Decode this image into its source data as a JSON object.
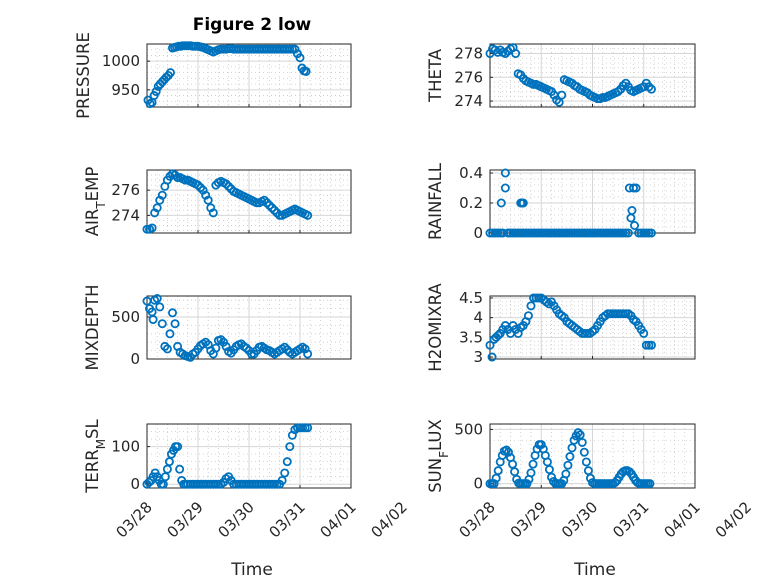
{
  "figure": {
    "title": "Figure 2 low",
    "xlabel": "Time"
  },
  "colors": {
    "marker": "#0072BD",
    "axes": "#262626",
    "grid": "#d6d6d6"
  },
  "chart_data": [
    {
      "type": "scatter",
      "id": "pressure",
      "ylabel": "PRESSURE",
      "ylim": [
        920,
        1030
      ],
      "yticks": [
        950,
        1000
      ],
      "ytick_labels": [
        "950",
        "1000"
      ],
      "xlim": [
        0,
        4
      ],
      "xtick_labels": [],
      "x": [
        0.02,
        0.06,
        0.1,
        0.14,
        0.18,
        0.22,
        0.26,
        0.3,
        0.34,
        0.38,
        0.42,
        0.46,
        0.5,
        0.54,
        0.58,
        0.62,
        0.66,
        0.7,
        0.74,
        0.78,
        0.82,
        0.86,
        0.9,
        0.95,
        1.0,
        1.05,
        1.1,
        1.15,
        1.2,
        1.25,
        1.3,
        1.35,
        1.4,
        1.45,
        1.5,
        1.55,
        1.6,
        1.65,
        1.7,
        1.75,
        1.8,
        1.85,
        1.9,
        1.95,
        2.0,
        2.05,
        2.1,
        2.15,
        2.2,
        2.25,
        2.3,
        2.35,
        2.4,
        2.45,
        2.5,
        2.55,
        2.6,
        2.65,
        2.7,
        2.75,
        2.8,
        2.85,
        2.9,
        2.95,
        3.0,
        3.04,
        3.08,
        3.12
      ],
      "y": [
        932,
        926,
        928,
        940,
        947,
        956,
        960,
        964,
        968,
        972,
        975,
        980,
        1023,
        1024,
        1025,
        1026,
        1026,
        1027,
        1027,
        1027,
        1027,
        1027,
        1026,
        1026,
        1026,
        1025,
        1024,
        1022,
        1020,
        1018,
        1016,
        1018,
        1020,
        1021,
        1021,
        1021,
        1022,
        1022,
        1021,
        1021,
        1021,
        1021,
        1021,
        1021,
        1021,
        1021,
        1021,
        1021,
        1021,
        1021,
        1021,
        1021,
        1021,
        1021,
        1021,
        1021,
        1021,
        1021,
        1021,
        1021,
        1021,
        1021,
        1021,
        1013,
        1006,
        988,
        983,
        982
      ]
    },
    {
      "type": "scatter",
      "id": "theta",
      "ylabel": "THETA",
      "ylim": [
        273.5,
        278.8
      ],
      "yticks": [
        274,
        276,
        278
      ],
      "ytick_labels": [
        "274",
        "276",
        "278"
      ],
      "xlim": [
        0,
        4
      ],
      "xtick_labels": [],
      "x": [
        0.0,
        0.05,
        0.1,
        0.15,
        0.2,
        0.25,
        0.3,
        0.35,
        0.4,
        0.45,
        0.5,
        0.55,
        0.6,
        0.65,
        0.7,
        0.75,
        0.8,
        0.85,
        0.9,
        0.95,
        1.0,
        1.05,
        1.1,
        1.15,
        1.2,
        1.25,
        1.3,
        1.35,
        1.4,
        1.45,
        1.5,
        1.55,
        1.6,
        1.65,
        1.7,
        1.75,
        1.8,
        1.85,
        1.9,
        1.95,
        2.0,
        2.05,
        2.1,
        2.15,
        2.2,
        2.25,
        2.3,
        2.35,
        2.4,
        2.45,
        2.5,
        2.55,
        2.6,
        2.65,
        2.7,
        2.75,
        2.8,
        2.85,
        2.9,
        2.95,
        3.0,
        3.05,
        3.1,
        3.15
      ],
      "y": [
        278,
        278.4,
        278.3,
        278.1,
        278.3,
        278.1,
        278,
        278.2,
        278.4,
        278.5,
        278,
        276.3,
        276.2,
        275.9,
        275.7,
        275.6,
        275.5,
        275.4,
        275.4,
        275.3,
        275.2,
        275.1,
        275,
        274.9,
        274.8,
        274.5,
        274.1,
        273.9,
        274.5,
        275.8,
        275.7,
        275.6,
        275.5,
        275.3,
        275.2,
        275,
        274.9,
        274.8,
        274.7,
        274.5,
        274.4,
        274.3,
        274.2,
        274.2,
        274.3,
        274.3,
        274.4,
        274.5,
        274.6,
        274.7,
        274.8,
        275,
        275.3,
        275.5,
        275.2,
        274.9,
        274.8,
        274.9,
        275,
        275.1,
        275.2,
        275.5,
        275.2,
        275
      ]
    },
    {
      "type": "scatter",
      "id": "air_temp",
      "ylabel": "AIR_TEMP",
      "ylim": [
        272.6,
        277.6
      ],
      "yticks": [
        274,
        276
      ],
      "ytick_labels": [
        "274",
        "276"
      ],
      "xlim": [
        0,
        4
      ],
      "xtick_labels": [],
      "x": [
        0.0,
        0.05,
        0.1,
        0.15,
        0.2,
        0.25,
        0.3,
        0.35,
        0.4,
        0.45,
        0.5,
        0.55,
        0.6,
        0.65,
        0.7,
        0.75,
        0.8,
        0.85,
        0.9,
        0.95,
        1.0,
        1.05,
        1.1,
        1.15,
        1.2,
        1.25,
        1.3,
        1.35,
        1.4,
        1.45,
        1.5,
        1.55,
        1.6,
        1.65,
        1.7,
        1.75,
        1.8,
        1.85,
        1.9,
        1.95,
        2.0,
        2.05,
        2.1,
        2.15,
        2.2,
        2.25,
        2.3,
        2.35,
        2.4,
        2.45,
        2.5,
        2.55,
        2.6,
        2.65,
        2.7,
        2.75,
        2.8,
        2.85,
        2.9,
        2.95,
        3.0,
        3.05,
        3.1,
        3.15
      ],
      "y": [
        272.9,
        272.9,
        273,
        274.2,
        274.6,
        275.2,
        275.6,
        276.3,
        276.8,
        277.1,
        277.3,
        277.2,
        277,
        277,
        276.9,
        276.8,
        276.8,
        276.7,
        276.6,
        276.5,
        276.4,
        276.2,
        276,
        275.6,
        275.2,
        274.6,
        274.2,
        276.4,
        276.6,
        276.7,
        276.6,
        276.5,
        276.3,
        276.1,
        275.9,
        275.8,
        275.7,
        275.6,
        275.5,
        275.4,
        275.3,
        275.2,
        275.1,
        275,
        275,
        275.1,
        275.2,
        275,
        274.8,
        274.6,
        274.4,
        274.2,
        274,
        274,
        274.1,
        274.2,
        274.3,
        274.4,
        274.5,
        274.4,
        274.3,
        274.2,
        274.1,
        274
      ]
    },
    {
      "type": "scatter",
      "id": "rainfall",
      "ylabel": "RAINFALL",
      "ylim": [
        0,
        0.42
      ],
      "yticks": [
        0,
        0.2,
        0.4
      ],
      "ytick_labels": [
        "0",
        "0.2",
        "0.4"
      ],
      "xlim": [
        0,
        4
      ],
      "xtick_labels": [],
      "x": [
        0.0,
        0.05,
        0.1,
        0.15,
        0.2,
        0.22,
        0.25,
        0.3,
        0.3,
        0.35,
        0.4,
        0.45,
        0.5,
        0.55,
        0.6,
        0.6,
        0.62,
        0.65,
        0.65,
        0.7,
        0.75,
        0.8,
        0.85,
        0.9,
        0.95,
        1.0,
        1.05,
        1.1,
        1.15,
        1.2,
        1.25,
        1.3,
        1.35,
        1.4,
        1.45,
        1.5,
        1.55,
        1.6,
        1.65,
        1.7,
        1.75,
        1.8,
        1.85,
        1.9,
        1.95,
        2.0,
        2.05,
        2.1,
        2.15,
        2.2,
        2.25,
        2.3,
        2.35,
        2.4,
        2.45,
        2.5,
        2.55,
        2.6,
        2.65,
        2.7,
        2.72,
        2.75,
        2.77,
        2.8,
        2.82,
        2.85,
        2.9,
        2.95,
        3.0,
        3.05,
        3.1,
        3.15
      ],
      "y": [
        0,
        0,
        0,
        0,
        0,
        0.2,
        0,
        0.4,
        0.3,
        0,
        0,
        0,
        0,
        0,
        0,
        0.2,
        0.2,
        0.2,
        0,
        0,
        0,
        0,
        0,
        0,
        0,
        0,
        0,
        0,
        0,
        0,
        0,
        0,
        0,
        0,
        0,
        0,
        0,
        0,
        0,
        0,
        0,
        0,
        0,
        0,
        0,
        0,
        0,
        0,
        0,
        0,
        0,
        0,
        0,
        0,
        0,
        0,
        0,
        0,
        0,
        0,
        0.3,
        0.1,
        0.15,
        0.3,
        0.05,
        0.3,
        0,
        0,
        0,
        0,
        0,
        0
      ]
    },
    {
      "type": "scatter",
      "id": "mixdepth",
      "ylabel": "MIXDEPTH",
      "ylim": [
        0,
        750
      ],
      "yticks": [
        0,
        500
      ],
      "ytick_labels": [
        "0",
        "500"
      ],
      "xlim": [
        0,
        4
      ],
      "xtick_labels": [],
      "x": [
        0.0,
        0.05,
        0.1,
        0.12,
        0.15,
        0.2,
        0.25,
        0.3,
        0.35,
        0.4,
        0.45,
        0.5,
        0.55,
        0.6,
        0.65,
        0.7,
        0.75,
        0.8,
        0.85,
        0.9,
        0.95,
        1.0,
        1.05,
        1.1,
        1.15,
        1.2,
        1.25,
        1.3,
        1.35,
        1.4,
        1.45,
        1.5,
        1.55,
        1.6,
        1.65,
        1.7,
        1.75,
        1.8,
        1.85,
        1.9,
        1.95,
        2.0,
        2.05,
        2.1,
        2.15,
        2.2,
        2.25,
        2.3,
        2.35,
        2.4,
        2.45,
        2.5,
        2.55,
        2.6,
        2.65,
        2.7,
        2.75,
        2.8,
        2.85,
        2.9,
        2.95,
        3.0,
        3.05,
        3.1,
        3.15
      ],
      "y": [
        690,
        600,
        560,
        470,
        700,
        720,
        620,
        420,
        150,
        120,
        300,
        550,
        420,
        150,
        80,
        60,
        40,
        30,
        20,
        60,
        80,
        120,
        160,
        180,
        200,
        170,
        100,
        60,
        130,
        220,
        230,
        200,
        150,
        90,
        70,
        110,
        150,
        170,
        180,
        150,
        130,
        100,
        60,
        60,
        100,
        140,
        150,
        130,
        110,
        100,
        80,
        60,
        80,
        100,
        120,
        140,
        110,
        80,
        60,
        80,
        100,
        120,
        140,
        120,
        60
      ]
    },
    {
      "type": "scatter",
      "id": "h2omixra",
      "ylabel": "H2OMIXRA",
      "ylim": [
        2.95,
        4.55
      ],
      "yticks": [
        3,
        3.5,
        4,
        4.5
      ],
      "ytick_labels": [
        "3",
        "3.5",
        "4",
        "4.5"
      ],
      "xlim": [
        0,
        4
      ],
      "xtick_labels": [],
      "x": [
        0.0,
        0.04,
        0.08,
        0.12,
        0.16,
        0.2,
        0.25,
        0.3,
        0.35,
        0.4,
        0.45,
        0.5,
        0.55,
        0.6,
        0.65,
        0.7,
        0.75,
        0.8,
        0.85,
        0.9,
        0.95,
        1.0,
        1.05,
        1.1,
        1.15,
        1.2,
        1.25,
        1.3,
        1.35,
        1.4,
        1.45,
        1.5,
        1.55,
        1.6,
        1.65,
        1.7,
        1.75,
        1.8,
        1.85,
        1.9,
        1.95,
        2.0,
        2.05,
        2.1,
        2.15,
        2.2,
        2.25,
        2.3,
        2.35,
        2.4,
        2.45,
        2.5,
        2.55,
        2.6,
        2.65,
        2.7,
        2.75,
        2.8,
        2.85,
        2.9,
        2.95,
        3.0,
        3.05,
        3.1,
        3.15
      ],
      "y": [
        3.3,
        3.0,
        3.45,
        3.5,
        3.55,
        3.6,
        3.7,
        3.8,
        3.7,
        3.6,
        3.8,
        3.7,
        3.6,
        3.75,
        3.8,
        3.9,
        4.05,
        4.3,
        4.5,
        4.5,
        4.5,
        4.5,
        4.45,
        4.4,
        4.35,
        4.4,
        4.3,
        4.2,
        4.1,
        4.05,
        4.0,
        3.9,
        3.85,
        3.8,
        3.75,
        3.7,
        3.65,
        3.6,
        3.6,
        3.6,
        3.6,
        3.65,
        3.7,
        3.8,
        3.9,
        4.0,
        4.05,
        4.1,
        4.1,
        4.1,
        4.1,
        4.1,
        4.1,
        4.1,
        4.1,
        4.1,
        4.05,
        3.95,
        3.9,
        3.8,
        3.7,
        3.6,
        3.3,
        3.3,
        3.3
      ]
    },
    {
      "type": "scatter",
      "id": "terr_msl",
      "ylabel": "TERR_MSL",
      "ylim": [
        -10,
        160
      ],
      "yticks": [
        0,
        100
      ],
      "ytick_labels": [
        "0",
        "100"
      ],
      "xlim": [
        0,
        4
      ],
      "xtick_labels": [
        "03/28",
        "03/29",
        "03/30",
        "03/31",
        "04/01",
        "04/02"
      ],
      "x": [
        0.0,
        0.04,
        0.08,
        0.12,
        0.16,
        0.2,
        0.24,
        0.28,
        0.32,
        0.36,
        0.4,
        0.44,
        0.48,
        0.52,
        0.56,
        0.6,
        0.64,
        0.68,
        0.72,
        0.76,
        0.8,
        0.85,
        0.9,
        0.95,
        1.0,
        1.05,
        1.1,
        1.15,
        1.2,
        1.25,
        1.3,
        1.35,
        1.4,
        1.45,
        1.5,
        1.55,
        1.6,
        1.65,
        1.7,
        1.75,
        1.8,
        1.85,
        1.9,
        1.95,
        2.0,
        2.05,
        2.1,
        2.15,
        2.2,
        2.25,
        2.3,
        2.35,
        2.4,
        2.45,
        2.5,
        2.55,
        2.6,
        2.65,
        2.7,
        2.75,
        2.8,
        2.85,
        2.9,
        2.95,
        3.0,
        3.05,
        3.1,
        3.15
      ],
      "y": [
        0,
        5,
        10,
        20,
        30,
        20,
        10,
        0,
        0,
        20,
        40,
        60,
        80,
        90,
        100,
        100,
        40,
        10,
        0,
        0,
        0,
        0,
        0,
        0,
        0,
        0,
        0,
        0,
        0,
        0,
        0,
        0,
        0,
        0,
        5,
        15,
        20,
        10,
        0,
        0,
        0,
        0,
        0,
        0,
        0,
        0,
        0,
        0,
        0,
        0,
        0,
        0,
        0,
        0,
        0,
        0,
        0,
        10,
        30,
        60,
        100,
        130,
        145,
        150,
        150,
        150,
        150,
        150
      ]
    },
    {
      "type": "scatter",
      "id": "sun_flux",
      "ylabel": "SUN_FLUX",
      "ylim": [
        -40,
        550
      ],
      "yticks": [
        0,
        500
      ],
      "ytick_labels": [
        "0",
        "500"
      ],
      "xlim": [
        0,
        4
      ],
      "xtick_labels": [
        "03/28",
        "03/29",
        "03/30",
        "03/31",
        "04/01",
        "04/02"
      ],
      "x": [
        0.0,
        0.04,
        0.08,
        0.12,
        0.16,
        0.2,
        0.24,
        0.28,
        0.32,
        0.36,
        0.4,
        0.44,
        0.48,
        0.52,
        0.56,
        0.6,
        0.64,
        0.68,
        0.72,
        0.76,
        0.8,
        0.84,
        0.88,
        0.92,
        0.96,
        1.0,
        1.04,
        1.08,
        1.12,
        1.16,
        1.2,
        1.24,
        1.28,
        1.32,
        1.36,
        1.4,
        1.44,
        1.48,
        1.52,
        1.56,
        1.6,
        1.64,
        1.68,
        1.72,
        1.76,
        1.8,
        1.84,
        1.88,
        1.92,
        1.96,
        2.0,
        2.04,
        2.08,
        2.12,
        2.16,
        2.2,
        2.24,
        2.28,
        2.32,
        2.36,
        2.4,
        2.44,
        2.48,
        2.52,
        2.56,
        2.6,
        2.64,
        2.68,
        2.72,
        2.76,
        2.8,
        2.84,
        2.88,
        2.92,
        2.96,
        3.0,
        3.04,
        3.08,
        3.12
      ],
      "y": [
        0,
        0,
        0,
        50,
        120,
        200,
        260,
        300,
        310,
        290,
        240,
        180,
        110,
        40,
        5,
        0,
        0,
        0,
        0,
        40,
        100,
        180,
        260,
        320,
        360,
        360,
        320,
        260,
        200,
        130,
        60,
        20,
        0,
        0,
        0,
        0,
        30,
        90,
        170,
        250,
        330,
        400,
        440,
        470,
        450,
        380,
        290,
        200,
        120,
        50,
        10,
        0,
        0,
        0,
        0,
        0,
        0,
        0,
        0,
        0,
        0,
        10,
        30,
        60,
        90,
        110,
        120,
        120,
        110,
        90,
        60,
        30,
        10,
        0,
        0,
        0,
        0,
        0,
        0
      ]
    }
  ]
}
